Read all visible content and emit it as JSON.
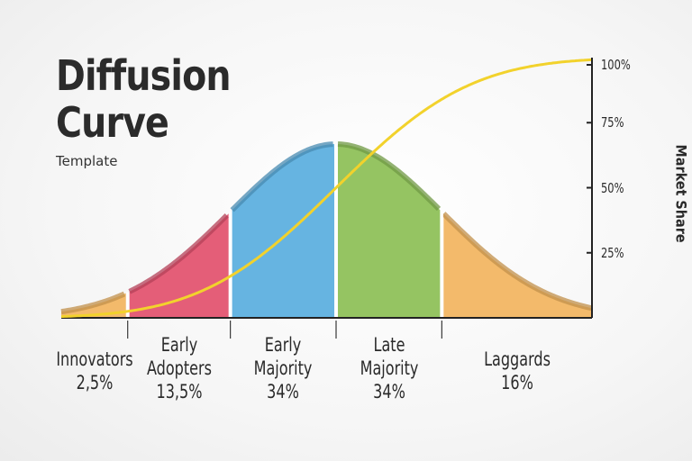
{
  "title": {
    "line1": "Diffusion",
    "line2": "Curve",
    "subtitle": "Template"
  },
  "chart_data": {
    "type": "area",
    "title": "Diffusion Curve",
    "ylabel": "Market Share",
    "yticks": [
      "100%",
      "75%",
      "50%",
      "25%"
    ],
    "ylim": [
      0,
      100
    ],
    "segments": [
      {
        "name": "Innovators",
        "line1": "Innovators",
        "line2": "2,5%",
        "line3": "",
        "value": 2.5,
        "color": "#f2b45e"
      },
      {
        "name": "Early Adopters",
        "line1": "Early",
        "line2": "Adopters",
        "line3": "13,5%",
        "value": 13.5,
        "color": "#e2506d"
      },
      {
        "name": "Early Majority",
        "line1": "Early",
        "line2": "Majority",
        "line3": "34%",
        "value": 34,
        "color": "#59aede"
      },
      {
        "name": "Late Majority",
        "line1": "Late",
        "line2": "Majority",
        "line3": "34%",
        "value": 34,
        "color": "#8cbf55"
      },
      {
        "name": "Laggards",
        "line1": "Laggards",
        "line2": "16%",
        "line3": "",
        "value": 16,
        "color": "#f2b45e"
      }
    ],
    "cumulative_curve_color": "#f2d22c"
  }
}
